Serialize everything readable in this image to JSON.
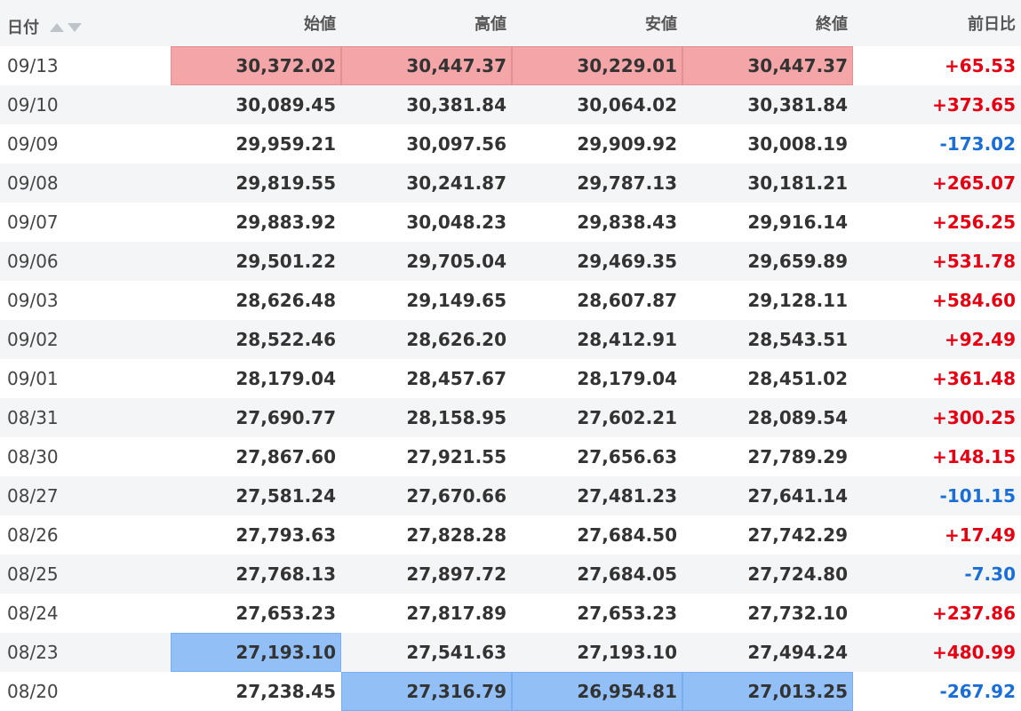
{
  "headers": {
    "date": "日付",
    "open": "始値",
    "high": "高値",
    "low": "安値",
    "close": "終値",
    "change": "前日比"
  },
  "icons": {
    "sort_asc": "sort-asc-icon",
    "sort_desc": "sort-desc-icon"
  },
  "colors": {
    "up": "#e60012",
    "down": "#1a6ed8",
    "highlight_high": "#f4a5a8",
    "highlight_low": "#92bff5"
  },
  "rows": [
    {
      "date": "09/13",
      "open": "30,372.02",
      "high": "30,447.37",
      "low": "30,229.01",
      "close": "30,447.37",
      "change": "+65.53"
    },
    {
      "date": "09/10",
      "open": "30,089.45",
      "high": "30,381.84",
      "low": "30,064.02",
      "close": "30,381.84",
      "change": "+373.65"
    },
    {
      "date": "09/09",
      "open": "29,959.21",
      "high": "30,097.56",
      "low": "29,909.92",
      "close": "30,008.19",
      "change": "-173.02"
    },
    {
      "date": "09/08",
      "open": "29,819.55",
      "high": "30,241.87",
      "low": "29,787.13",
      "close": "30,181.21",
      "change": "+265.07"
    },
    {
      "date": "09/07",
      "open": "29,883.92",
      "high": "30,048.23",
      "low": "29,838.43",
      "close": "29,916.14",
      "change": "+256.25"
    },
    {
      "date": "09/06",
      "open": "29,501.22",
      "high": "29,705.04",
      "low": "29,469.35",
      "close": "29,659.89",
      "change": "+531.78"
    },
    {
      "date": "09/03",
      "open": "28,626.48",
      "high": "29,149.65",
      "low": "28,607.87",
      "close": "29,128.11",
      "change": "+584.60"
    },
    {
      "date": "09/02",
      "open": "28,522.46",
      "high": "28,626.20",
      "low": "28,412.91",
      "close": "28,543.51",
      "change": "+92.49"
    },
    {
      "date": "09/01",
      "open": "28,179.04",
      "high": "28,457.67",
      "low": "28,179.04",
      "close": "28,451.02",
      "change": "+361.48"
    },
    {
      "date": "08/31",
      "open": "27,690.77",
      "high": "28,158.95",
      "low": "27,602.21",
      "close": "28,089.54",
      "change": "+300.25"
    },
    {
      "date": "08/30",
      "open": "27,867.60",
      "high": "27,921.55",
      "low": "27,656.63",
      "close": "27,789.29",
      "change": "+148.15"
    },
    {
      "date": "08/27",
      "open": "27,581.24",
      "high": "27,670.66",
      "low": "27,481.23",
      "close": "27,641.14",
      "change": "-101.15"
    },
    {
      "date": "08/26",
      "open": "27,793.63",
      "high": "27,828.28",
      "low": "27,684.50",
      "close": "27,742.29",
      "change": "+17.49"
    },
    {
      "date": "08/25",
      "open": "27,768.13",
      "high": "27,897.72",
      "low": "27,684.05",
      "close": "27,724.80",
      "change": "-7.30"
    },
    {
      "date": "08/24",
      "open": "27,653.23",
      "high": "27,817.89",
      "low": "27,653.23",
      "close": "27,732.10",
      "change": "+237.86"
    },
    {
      "date": "08/23",
      "open": "27,193.10",
      "high": "27,541.63",
      "low": "27,193.10",
      "close": "27,494.24",
      "change": "+480.99"
    },
    {
      "date": "08/20",
      "open": "27,238.45",
      "high": "27,316.79",
      "low": "26,954.81",
      "close": "27,013.25",
      "change": "-267.92"
    }
  ],
  "highlights": {
    "max": [
      [
        0,
        "open"
      ],
      [
        0,
        "high"
      ],
      [
        0,
        "low"
      ],
      [
        0,
        "close"
      ]
    ],
    "min": [
      [
        15,
        "open"
      ],
      [
        16,
        "high"
      ],
      [
        16,
        "low"
      ],
      [
        16,
        "close"
      ]
    ]
  }
}
